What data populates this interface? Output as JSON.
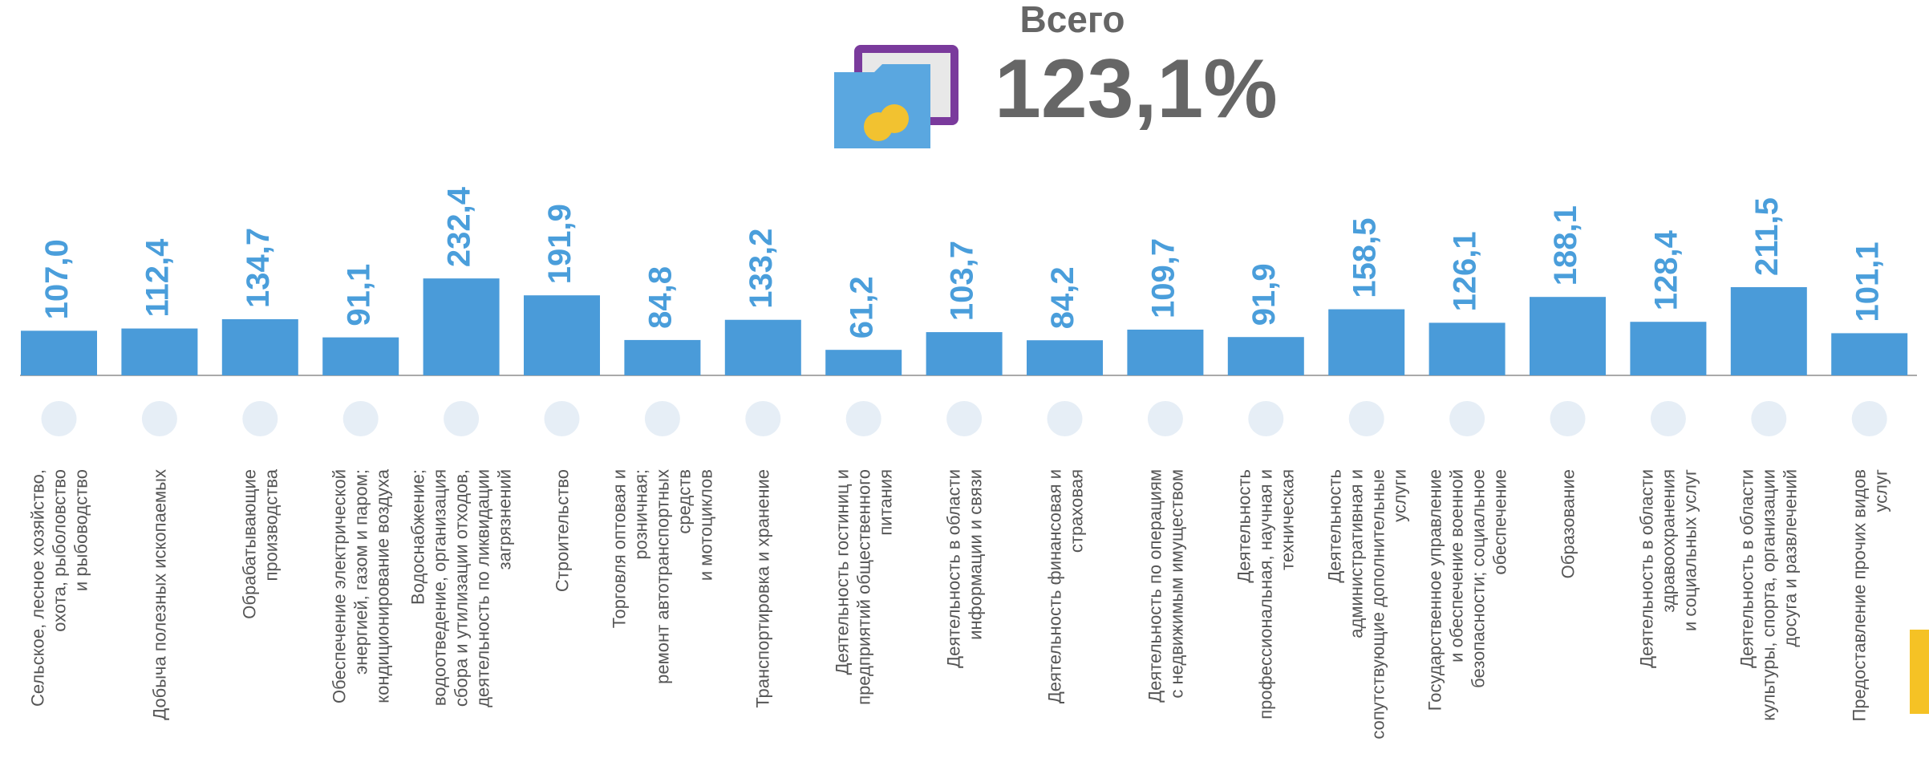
{
  "chart_data": {
    "type": "bar",
    "title": "Всего",
    "total": "123,1%",
    "color": "#4a9bd9",
    "categories": [
      "Сельское, лесное хозяйство,\nохота, рыболовство\nи  рыбоводство",
      "Добыча полезных ископаемых",
      "Обрабатывающие\nпроизводства",
      "Обеспечение электрической\nэнергией, газом и паром;\nкондиционирование воздуха",
      "Водоснабжение;\nводоотведение, организация\nсбора и утилизации отходов,\nдеятельность по ликвидации\nзагрязнений",
      "Строительство",
      "Торговля оптовая и\nрозничная;\nремонт автотранспортных\nсредств\nи мотоциклов",
      "Транспортировка и хранение",
      "Деятельность гостиниц и\nпредприятий общественного\nпитания",
      "Деятельность в области\nинформации и связи",
      "Деятельность финансовая и\nстраховая",
      "Деятельность по операциям\nс недвижимым имуществом",
      "Деятельность\nпрофессиональная, научная и\nтехническая",
      "Деятельность\nадминистративная и\nсопутствующие дополнительные\nуслуги",
      "Государственное управление\nи обеспечение военной\nбезопасности; социальное\nобеспечение",
      "Образование",
      "Деятельность в области\nздравоохранения\nи социальных услуг",
      "Деятельность в области\nкультуры, спорта, организации\nдосуга и развлечений",
      "Предоставление прочих видов\nуслуг"
    ],
    "values": [
      107.0,
      112.4,
      134.7,
      91.1,
      232.4,
      191.9,
      84.8,
      133.2,
      61.2,
      103.7,
      84.2,
      109.7,
      91.9,
      158.5,
      126.1,
      188.1,
      128.4,
      211.5,
      101.1
    ],
    "value_labels": [
      "107,0",
      "112,4",
      "134,7",
      "91,1",
      "232,4",
      "191,9",
      "84,8",
      "133,2",
      "61,2",
      "103,7",
      "84,2",
      "109,7",
      "91,9",
      "158,5",
      "126,1",
      "188,1",
      "128,4",
      "211,5",
      "101,1"
    ]
  }
}
